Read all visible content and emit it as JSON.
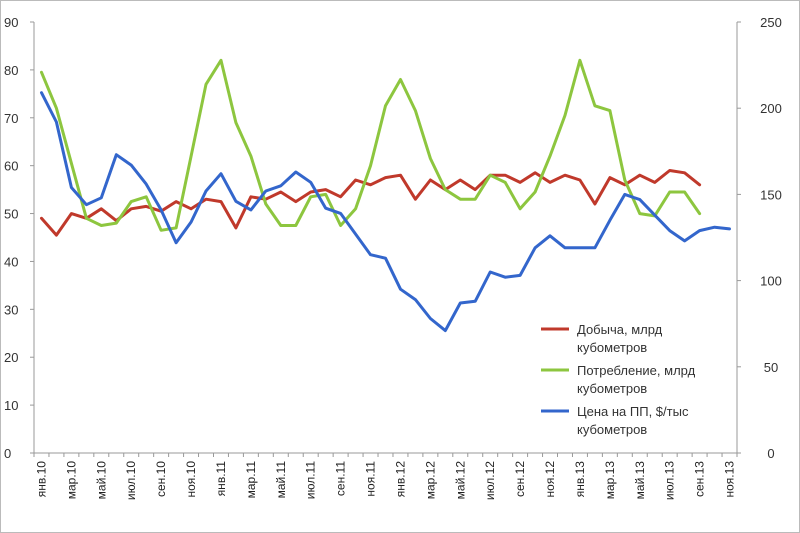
{
  "chart_data": {
    "type": "line",
    "grid": false,
    "legend_position": "bottom-right inside plot",
    "x": [
      "янв.10",
      "фев.10",
      "мар.10",
      "апр.10",
      "май.10",
      "июн.10",
      "июл.10",
      "авг.10",
      "сен.10",
      "окт.10",
      "ноя.10",
      "дек.10",
      "янв.11",
      "фев.11",
      "мар.11",
      "апр.11",
      "май.11",
      "июн.11",
      "июл.11",
      "авг.11",
      "сен.11",
      "окт.11",
      "ноя.11",
      "дек.11",
      "янв.12",
      "фев.12",
      "мар.12",
      "апр.12",
      "май.12",
      "июн.12",
      "июл.12",
      "авг.12",
      "сен.12",
      "окт.12",
      "ноя.12",
      "дек.12",
      "янв.13",
      "фев.13",
      "мар.13",
      "апр.13",
      "май.13",
      "июн.13",
      "июл.13",
      "авг.13",
      "сен.13",
      "окт.13",
      "ноя.13"
    ],
    "x_tick_labels": [
      "янв.10",
      "мар.10",
      "май.10",
      "июл.10",
      "сен.10",
      "ноя.10",
      "янв.11",
      "мар.11",
      "май.11",
      "июл.11",
      "сен.11",
      "ноя.11",
      "янв.12",
      "мар.12",
      "май.12",
      "июл.12",
      "сен.12",
      "ноя.12",
      "янв.13",
      "мар.13",
      "май.13",
      "июл.13",
      "сен.13",
      "ноя.13"
    ],
    "y_left": {
      "range": [
        0,
        90
      ],
      "ticks": [
        "0",
        "10",
        "20",
        "30",
        "40",
        "50",
        "60",
        "70",
        "80",
        "90"
      ]
    },
    "y_right": {
      "range": [
        0,
        250
      ],
      "ticks": [
        "0",
        "50",
        "100",
        "150",
        "200",
        "250"
      ]
    },
    "series": [
      {
        "name": "Добыча, млрд кубометров",
        "axis": "left",
        "color": "#c0392b",
        "values": [
          49,
          45.5,
          50,
          49,
          51,
          48.5,
          51,
          51.5,
          50.5,
          52.5,
          51,
          53,
          52.5,
          47,
          53.5,
          53,
          54.5,
          52.5,
          54.5,
          55,
          53.5,
          57,
          56,
          57.5,
          58,
          53,
          57,
          55,
          57,
          55,
          58,
          58,
          56.5,
          58.5,
          56.5,
          58,
          57,
          52,
          57.5,
          56,
          58,
          56.5,
          59,
          58.5,
          56,
          null,
          null
        ]
      },
      {
        "name": "Потребление, млрд кубометров",
        "axis": "left",
        "color": "#8dc63f",
        "values": [
          79.5,
          72,
          60.5,
          49,
          47.5,
          48,
          52.5,
          53.5,
          46.5,
          47,
          62,
          77,
          82,
          69,
          62,
          52,
          47.5,
          47.5,
          53.5,
          54,
          47.5,
          51,
          60,
          72.5,
          78,
          71.5,
          61.5,
          55,
          53,
          53,
          58,
          56.5,
          51,
          54.5,
          62,
          70.5,
          82,
          72.5,
          71.5,
          57,
          50,
          49.5,
          54.5,
          54.5,
          50,
          null,
          null
        ]
      },
      {
        "name": "Цена на ПП, $/тыс кубометров",
        "axis": "right",
        "color": "#3366cc",
        "values": [
          209,
          192,
          154,
          144,
          148,
          173,
          167,
          156,
          141,
          122,
          134,
          152,
          162,
          146,
          141,
          152,
          155,
          163,
          157,
          142,
          139,
          127,
          115,
          113,
          95,
          89,
          78,
          71,
          87,
          88,
          105,
          102,
          103,
          119,
          126,
          119,
          119,
          119,
          135,
          150,
          147,
          138,
          129,
          123,
          129,
          131,
          130
        ]
      }
    ]
  }
}
